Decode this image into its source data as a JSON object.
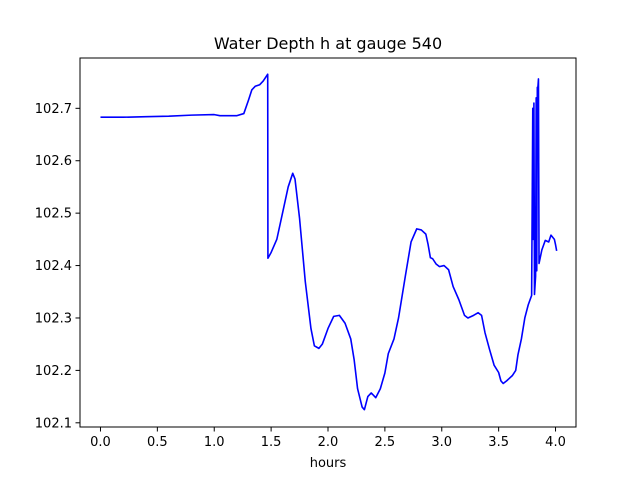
{
  "chart_data": {
    "type": "line",
    "title": "Water Depth h at gauge 540",
    "xlabel": "hours",
    "ylabel": "",
    "xlim": [
      -0.18,
      4.18
    ],
    "ylim": [
      102.092,
      102.796
    ],
    "grid": false,
    "x_ticks": [
      0.0,
      0.5,
      1.0,
      1.5,
      2.0,
      2.5,
      3.0,
      3.5,
      4.0
    ],
    "x_tick_labels": [
      "0.0",
      "0.5",
      "1.0",
      "1.5",
      "2.0",
      "2.5",
      "3.0",
      "3.5",
      "4.0"
    ],
    "y_ticks": [
      102.1,
      102.2,
      102.3,
      102.4,
      102.5,
      102.6,
      102.7
    ],
    "y_tick_labels": [
      "102.1",
      "102.2",
      "102.3",
      "102.4",
      "102.5",
      "102.6",
      "102.7"
    ],
    "series": [
      {
        "color": "#0000ff",
        "points": [
          [
            0.0,
            102.683
          ],
          [
            0.2,
            102.683
          ],
          [
            0.4,
            102.684
          ],
          [
            0.6,
            102.685
          ],
          [
            0.8,
            102.687
          ],
          [
            1.0,
            102.688
          ],
          [
            1.05,
            102.686
          ],
          [
            1.2,
            102.686
          ],
          [
            1.26,
            102.69
          ],
          [
            1.3,
            102.715
          ],
          [
            1.33,
            102.735
          ],
          [
            1.36,
            102.742
          ],
          [
            1.4,
            102.745
          ],
          [
            1.43,
            102.752
          ],
          [
            1.47,
            102.765
          ],
          [
            1.472,
            102.414
          ],
          [
            1.5,
            102.425
          ],
          [
            1.55,
            102.45
          ],
          [
            1.6,
            102.5
          ],
          [
            1.65,
            102.55
          ],
          [
            1.69,
            102.576
          ],
          [
            1.71,
            102.565
          ],
          [
            1.75,
            102.49
          ],
          [
            1.8,
            102.37
          ],
          [
            1.85,
            102.28
          ],
          [
            1.88,
            102.247
          ],
          [
            1.92,
            102.242
          ],
          [
            1.95,
            102.25
          ],
          [
            2.0,
            102.28
          ],
          [
            2.05,
            102.303
          ],
          [
            2.1,
            102.305
          ],
          [
            2.15,
            102.29
          ],
          [
            2.2,
            102.26
          ],
          [
            2.23,
            102.22
          ],
          [
            2.26,
            102.165
          ],
          [
            2.3,
            102.13
          ],
          [
            2.32,
            102.125
          ],
          [
            2.35,
            102.15
          ],
          [
            2.38,
            102.157
          ],
          [
            2.42,
            102.148
          ],
          [
            2.46,
            102.165
          ],
          [
            2.5,
            102.195
          ],
          [
            2.53,
            102.232
          ],
          [
            2.58,
            102.26
          ],
          [
            2.62,
            102.3
          ],
          [
            2.68,
            102.38
          ],
          [
            2.73,
            102.445
          ],
          [
            2.78,
            102.47
          ],
          [
            2.82,
            102.468
          ],
          [
            2.86,
            102.46
          ],
          [
            2.88,
            102.44
          ],
          [
            2.9,
            102.415
          ],
          [
            2.92,
            102.413
          ],
          [
            2.95,
            102.403
          ],
          [
            2.98,
            102.398
          ],
          [
            3.02,
            102.4
          ],
          [
            3.06,
            102.392
          ],
          [
            3.1,
            102.36
          ],
          [
            3.15,
            102.335
          ],
          [
            3.2,
            102.305
          ],
          [
            3.23,
            102.3
          ],
          [
            3.28,
            102.305
          ],
          [
            3.32,
            102.31
          ],
          [
            3.35,
            102.305
          ],
          [
            3.38,
            102.272
          ],
          [
            3.42,
            102.24
          ],
          [
            3.46,
            102.21
          ],
          [
            3.5,
            102.196
          ],
          [
            3.52,
            102.18
          ],
          [
            3.54,
            102.175
          ],
          [
            3.57,
            102.18
          ],
          [
            3.62,
            102.19
          ],
          [
            3.65,
            102.2
          ],
          [
            3.67,
            102.23
          ],
          [
            3.7,
            102.26
          ],
          [
            3.73,
            102.3
          ],
          [
            3.76,
            102.325
          ],
          [
            3.79,
            102.343
          ],
          [
            3.8,
            102.7
          ],
          [
            3.805,
            102.45
          ],
          [
            3.81,
            102.71
          ],
          [
            3.815,
            102.345
          ],
          [
            3.825,
            102.38
          ],
          [
            3.83,
            102.72
          ],
          [
            3.835,
            102.39
          ],
          [
            3.84,
            102.74
          ],
          [
            3.845,
            102.74
          ],
          [
            3.85,
            102.756
          ],
          [
            3.855,
            102.404
          ],
          [
            3.88,
            102.43
          ],
          [
            3.91,
            102.448
          ],
          [
            3.94,
            102.445
          ],
          [
            3.96,
            102.458
          ],
          [
            3.99,
            102.45
          ],
          [
            4.0,
            102.44
          ],
          [
            4.01,
            102.428
          ]
        ]
      }
    ]
  }
}
